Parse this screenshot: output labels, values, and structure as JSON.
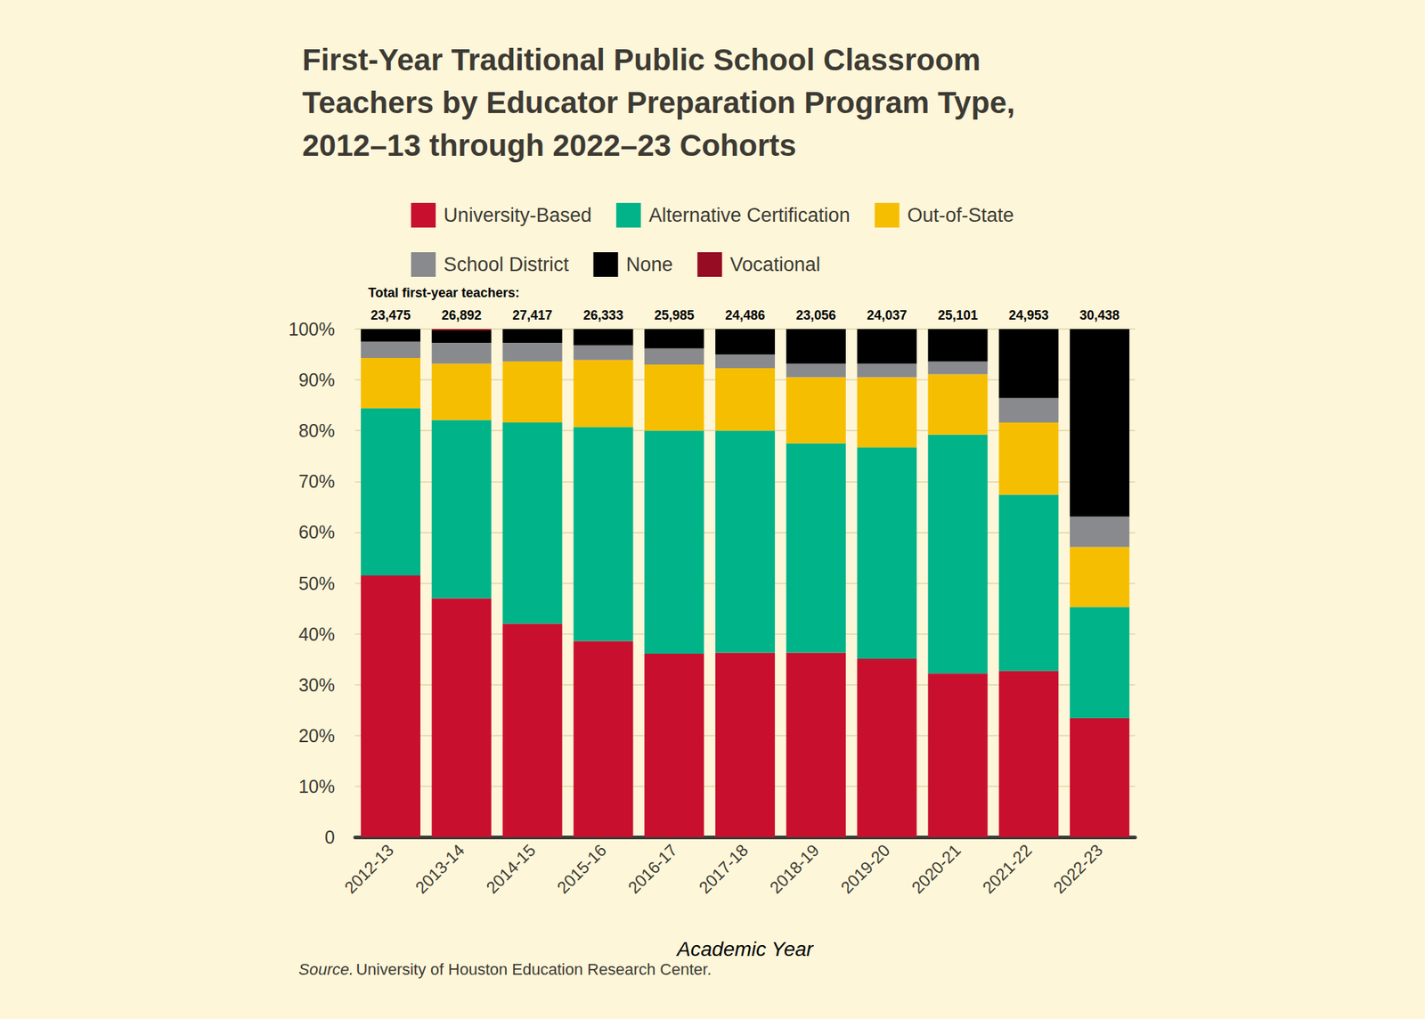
{
  "chart_data": {
    "type": "bar",
    "title": "First-Year Traditional Public School Classroom Teachers by Educator Preparation Program Type, 2012–13 through 2022–23 Cohorts",
    "x_label": "Academic Year",
    "categories": [
      "2012-13",
      "2013-14",
      "2014-15",
      "2015-16",
      "2016-17",
      "2017-18",
      "2018-19",
      "2019-20",
      "2020-21",
      "2021-22",
      "2022-23"
    ],
    "series": [
      {
        "name": "University-Based",
        "color": "#c8102e",
        "values": [
          51.5,
          47.0,
          42.0,
          38.6,
          36.1,
          36.3,
          36.3,
          35.1,
          32.2,
          32.7,
          23.4
        ]
      },
      {
        "name": "Alternative Certification",
        "color": "#00b388",
        "values": [
          32.9,
          35.1,
          39.6,
          42.1,
          43.9,
          43.7,
          41.2,
          41.6,
          47.0,
          34.7,
          21.9
        ]
      },
      {
        "name": "Out-of-State",
        "color": "#f6be00",
        "values": [
          9.9,
          11.1,
          12.0,
          13.2,
          13.0,
          12.3,
          13.0,
          13.8,
          11.9,
          14.2,
          11.8
        ]
      },
      {
        "name": "School District",
        "color": "#898a8d",
        "values": [
          3.2,
          4.1,
          3.7,
          2.9,
          3.2,
          2.7,
          2.7,
          2.7,
          2.5,
          4.8,
          6.0
        ]
      },
      {
        "name": "None",
        "color": "#000000",
        "values": [
          2.5,
          2.4,
          2.7,
          3.2,
          3.8,
          5.0,
          6.8,
          6.8,
          6.4,
          13.6,
          36.9
        ]
      },
      {
        "name": "Vocational",
        "color": "#960c22",
        "values": [
          0,
          0.3,
          0,
          0,
          0,
          0,
          0,
          0,
          0,
          0,
          0
        ]
      }
    ],
    "totals_title": "Total first-year teachers:",
    "totals": [
      {
        "value": 23475,
        "label": "23,475"
      },
      {
        "value": 26892,
        "label": "26,892"
      },
      {
        "value": 27417,
        "label": "27,417"
      },
      {
        "value": 26333,
        "label": "26,333"
      },
      {
        "value": 25985,
        "label": "25,985"
      },
      {
        "value": 24486,
        "label": "24,486"
      },
      {
        "value": 23056,
        "label": "23,056"
      },
      {
        "value": 24037,
        "label": "24,037"
      },
      {
        "value": 25101,
        "label": "25,101"
      },
      {
        "value": 24953,
        "label": "24,953"
      },
      {
        "value": 30438,
        "label": "30,438"
      }
    ],
    "ylim": [
      0,
      100
    ],
    "yticks": [
      0,
      {
        "value": 10,
        "label": "10%"
      },
      {
        "value": 20,
        "label": "20%"
      },
      {
        "value": 30,
        "label": "30%"
      },
      {
        "value": 40,
        "label": "40%"
      },
      {
        "value": 50,
        "label": "50%"
      },
      {
        "value": 60,
        "label": "60%"
      },
      {
        "value": 70,
        "label": "70%"
      },
      {
        "value": 80,
        "label": "80%"
      },
      {
        "value": 90,
        "label": "90%"
      },
      {
        "value": 100,
        "label": "100%"
      }
    ],
    "grid": true,
    "stacked": true,
    "legend": "top",
    "source": {
      "prefix": "Source.",
      "text": "University of Houston Education Research Center."
    }
  }
}
